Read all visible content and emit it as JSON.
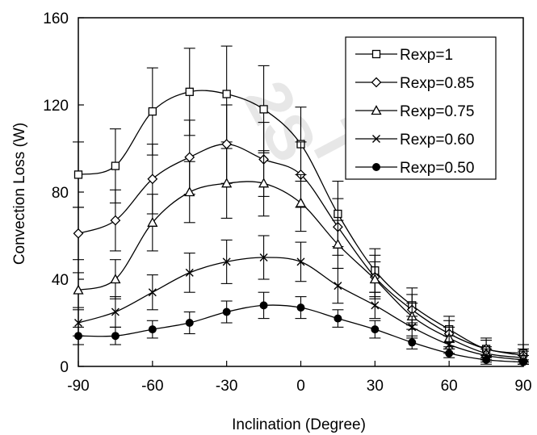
{
  "chart_data": {
    "type": "line",
    "title": "",
    "xlabel": "Inclination (Degree)",
    "ylabel": "Convection Loss (W)",
    "xlim": [
      -90,
      90
    ],
    "ylim": [
      0,
      160
    ],
    "xticks": [
      "-90",
      "-60",
      "-30",
      "0",
      "30",
      "60",
      "90"
    ],
    "xtick_values": [
      -90,
      -60,
      -30,
      0,
      30,
      60,
      90
    ],
    "yticks": [
      "0",
      "40",
      "80",
      "120",
      "160"
    ],
    "ytick_values": [
      0,
      40,
      80,
      120,
      160
    ],
    "grid": false,
    "legend_position": "top-right",
    "error_bars": true,
    "x": [
      -90,
      -75,
      -60,
      -45,
      -30,
      -15,
      0,
      15,
      30,
      45,
      60,
      75,
      90
    ],
    "series": [
      {
        "name": "Rexp=1",
        "marker": "open-square",
        "values": [
          88,
          92,
          117,
          126,
          125,
          118,
          102,
          70,
          44,
          28,
          17,
          8,
          6
        ],
        "errors": [
          15,
          17,
          20,
          20,
          22,
          20,
          17,
          15,
          10,
          8,
          6,
          5,
          4
        ]
      },
      {
        "name": "Rexp=0.85",
        "marker": "open-diamond",
        "values": [
          61,
          67,
          86,
          96,
          102,
          95,
          88,
          64,
          41,
          26,
          15,
          8,
          5
        ],
        "errors": [
          12,
          14,
          16,
          17,
          18,
          17,
          15,
          13,
          10,
          7,
          6,
          4,
          3
        ]
      },
      {
        "name": "Rexp=0.75",
        "marker": "open-triangle",
        "values": [
          35,
          40,
          66,
          80,
          84,
          84,
          75,
          56,
          40,
          23,
          13,
          6,
          4
        ],
        "errors": [
          8,
          9,
          13,
          14,
          16,
          15,
          13,
          11,
          8,
          6,
          5,
          3,
          3
        ]
      },
      {
        "name": "Rexp=0.60",
        "marker": "x",
        "values": [
          20,
          25,
          34,
          43,
          48,
          50,
          48,
          37,
          28,
          18,
          10,
          5,
          3
        ],
        "errors": [
          6,
          7,
          8,
          9,
          10,
          10,
          9,
          8,
          6,
          5,
          4,
          3,
          2
        ]
      },
      {
        "name": "Rexp=0.50",
        "marker": "filled-circle",
        "values": [
          14,
          14,
          17,
          20,
          25,
          28,
          27,
          22,
          17,
          11,
          6,
          3,
          2
        ],
        "errors": [
          4,
          4,
          4,
          5,
          5,
          6,
          5,
          4,
          4,
          3,
          2,
          2,
          1
        ]
      }
    ]
  },
  "watermark_text": "2ST"
}
